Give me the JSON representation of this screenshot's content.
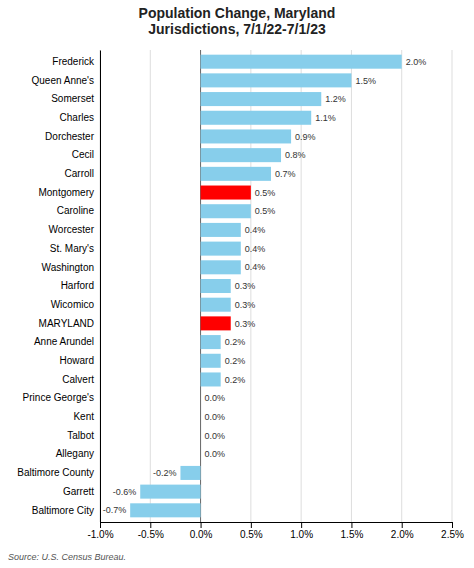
{
  "chart_data": {
    "type": "bar",
    "orientation": "horizontal",
    "title": "Population Change, Maryland\nJurisdictions, 7/1/22-7/1/23",
    "source": "Source: U.S. Census Bureau.",
    "categories": [
      "Frederick",
      "Queen Anne's",
      "Somerset",
      "Charles",
      "Dorchester",
      "Cecil",
      "Carroll",
      "Montgomery",
      "Caroline",
      "Worcester",
      "St. Mary's",
      "Washington",
      "Harford",
      "Wicomico",
      "MARYLAND",
      "Anne Arundel",
      "Howard",
      "Calvert",
      "Prince George's",
      "Kent",
      "Talbot",
      "Allegany",
      "Baltimore County",
      "Garrett",
      "Baltimore City"
    ],
    "values": [
      2.0,
      1.5,
      1.2,
      1.1,
      0.9,
      0.8,
      0.7,
      0.5,
      0.5,
      0.4,
      0.4,
      0.4,
      0.3,
      0.3,
      0.3,
      0.2,
      0.2,
      0.2,
      0.0,
      0.0,
      0.0,
      0.0,
      -0.2,
      -0.6,
      -0.7
    ],
    "value_labels": [
      "2.0%",
      "1.5%",
      "1.2%",
      "1.1%",
      "0.9%",
      "0.8%",
      "0.7%",
      "0.5%",
      "0.5%",
      "0.4%",
      "0.4%",
      "0.4%",
      "0.3%",
      "0.3%",
      "0.3%",
      "0.2%",
      "0.2%",
      "0.2%",
      "0.0%",
      "0.0%",
      "0.0%",
      "0.0%",
      "-0.2%",
      "-0.6%",
      "-0.7%"
    ],
    "data_labels": true,
    "colors": [
      "#87CEEB",
      "#87CEEB",
      "#87CEEB",
      "#87CEEB",
      "#87CEEB",
      "#87CEEB",
      "#87CEEB",
      "#FF0000",
      "#87CEEB",
      "#87CEEB",
      "#87CEEB",
      "#87CEEB",
      "#87CEEB",
      "#87CEEB",
      "#FF0000",
      "#87CEEB",
      "#87CEEB",
      "#87CEEB",
      "#87CEEB",
      "#87CEEB",
      "#87CEEB",
      "#87CEEB",
      "#87CEEB",
      "#87CEEB",
      "#87CEEB"
    ],
    "xlim": [
      -1.0,
      2.5
    ],
    "xticks": [
      {
        "value": -1.0,
        "label": "-1.0%"
      },
      {
        "value": -0.5,
        "label": "-0.5%"
      },
      {
        "value": 0.0,
        "label": "0.0%"
      },
      {
        "value": 0.5,
        "label": "0.5%"
      },
      {
        "value": 1.0,
        "label": "1.0%"
      },
      {
        "value": 1.5,
        "label": "1.5%"
      },
      {
        "value": 2.0,
        "label": "2.0%"
      },
      {
        "value": 2.5,
        "label": "2.5%"
      }
    ],
    "grid": true
  }
}
